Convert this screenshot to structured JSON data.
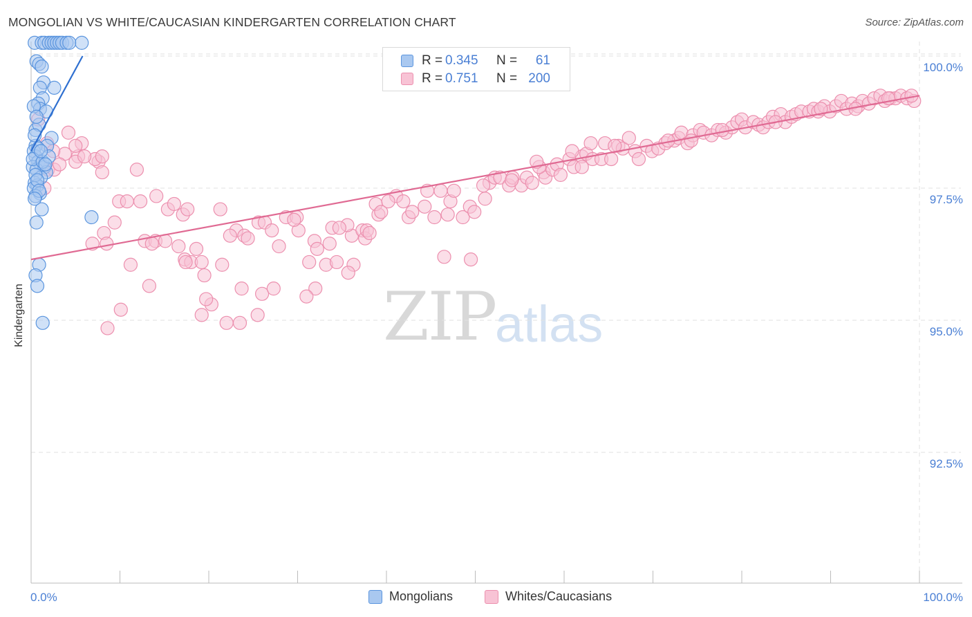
{
  "header": {
    "title": "MONGOLIAN VS WHITE/CAUCASIAN KINDERGARTEN CORRELATION CHART",
    "source": "Source: ZipAtlas.com"
  },
  "watermark": {
    "zip": "ZIP",
    "atlas": "atlas"
  },
  "legend": {
    "rows": [
      {
        "r_label": "R =",
        "r_value": "0.345",
        "n_label": "N =",
        "n_value": "61",
        "color": "#4a7fd4"
      },
      {
        "r_label": "R =",
        "r_value": "0.751",
        "n_label": "N =",
        "n_value": "200",
        "color": "#4a7fd4"
      }
    ]
  },
  "bottom_legend": {
    "mongolians": "Mongolians",
    "whites": "Whites/Caucasians"
  },
  "colors": {
    "blue_fill": "#a9c8f0",
    "blue_stroke": "#5b95de",
    "blue_line": "#2e6fd0",
    "pink_fill": "#f8c3d5",
    "pink_stroke": "#ec8fae",
    "pink_line": "#e06a93",
    "tick_text": "#4a7fd4",
    "grid": "#e2e2e2"
  },
  "chart_data": {
    "type": "scatter",
    "title": "MONGOLIAN VS WHITE/CAUCASIAN KINDERGARTEN CORRELATION CHART",
    "xlabel": "",
    "ylabel": "Kindergarten",
    "xlim": [
      0,
      100
    ],
    "ylim": [
      90.35,
      100.2
    ],
    "x_tick_labels": [
      "0.0%",
      "100.0%"
    ],
    "y_ticks": [
      {
        "value": 100.0,
        "label": "100.0%"
      },
      {
        "value": 97.5,
        "label": "97.5%"
      },
      {
        "value": 95.0,
        "label": "95.0%"
      },
      {
        "value": 92.5,
        "label": "92.5%"
      }
    ],
    "series": [
      {
        "name": "Mongolians",
        "trend": {
          "x1": 0.0,
          "y1": 98.2,
          "x2": 5.8,
          "y2": 100.0
        },
        "points": [
          [
            0.4,
            100.25
          ],
          [
            1.2,
            100.25
          ],
          [
            1.5,
            100.25
          ],
          [
            2.0,
            100.25
          ],
          [
            2.3,
            100.25
          ],
          [
            2.6,
            100.25
          ],
          [
            2.9,
            100.25
          ],
          [
            3.2,
            100.25
          ],
          [
            3.5,
            100.25
          ],
          [
            4.0,
            100.25
          ],
          [
            4.3,
            100.25
          ],
          [
            5.7,
            100.25
          ],
          [
            0.6,
            99.9
          ],
          [
            0.9,
            99.85
          ],
          [
            1.2,
            99.8
          ],
          [
            1.4,
            99.5
          ],
          [
            1.0,
            99.4
          ],
          [
            1.3,
            99.2
          ],
          [
            2.6,
            99.4
          ],
          [
            0.8,
            99.1
          ],
          [
            1.0,
            99.0
          ],
          [
            1.7,
            98.95
          ],
          [
            0.5,
            98.6
          ],
          [
            0.9,
            98.7
          ],
          [
            2.3,
            98.45
          ],
          [
            1.8,
            98.3
          ],
          [
            0.5,
            98.3
          ],
          [
            0.3,
            98.2
          ],
          [
            0.5,
            98.1
          ],
          [
            0.8,
            98.0
          ],
          [
            1.1,
            97.95
          ],
          [
            0.2,
            97.9
          ],
          [
            1.5,
            97.9
          ],
          [
            0.6,
            97.85
          ],
          [
            1.7,
            97.8
          ],
          [
            1.1,
            97.7
          ],
          [
            0.4,
            97.6
          ],
          [
            0.7,
            97.55
          ],
          [
            0.3,
            97.5
          ],
          [
            1.0,
            97.4
          ],
          [
            0.5,
            97.35
          ],
          [
            1.2,
            97.1
          ],
          [
            6.8,
            96.95
          ],
          [
            0.6,
            96.85
          ],
          [
            0.9,
            96.05
          ],
          [
            0.5,
            95.85
          ],
          [
            0.7,
            95.65
          ],
          [
            1.3,
            94.95
          ],
          [
            0.3,
            99.05
          ],
          [
            0.6,
            98.85
          ],
          [
            0.4,
            98.5
          ],
          [
            0.8,
            98.25
          ],
          [
            0.2,
            98.05
          ],
          [
            0.5,
            97.75
          ],
          [
            1.3,
            98.0
          ],
          [
            0.7,
            97.65
          ],
          [
            0.9,
            97.45
          ],
          [
            2.0,
            98.1
          ],
          [
            1.6,
            97.95
          ],
          [
            1.1,
            98.2
          ],
          [
            0.4,
            97.3
          ]
        ]
      },
      {
        "name": "Whites/Caucasians",
        "trend": {
          "x1": 0.0,
          "y1": 96.15,
          "x2": 100.0,
          "y2": 99.25
        },
        "points": [
          [
            0.8,
            98.8
          ],
          [
            1.8,
            98.35
          ],
          [
            4.2,
            98.55
          ],
          [
            5.7,
            98.35
          ],
          [
            3.8,
            98.15
          ],
          [
            1.9,
            97.85
          ],
          [
            2.6,
            97.85
          ],
          [
            3.2,
            97.95
          ],
          [
            2.5,
            98.2
          ],
          [
            5.3,
            98.1
          ],
          [
            5.0,
            98.0
          ],
          [
            7.6,
            98.0
          ],
          [
            7.2,
            98.05
          ],
          [
            8.0,
            98.1
          ],
          [
            8.0,
            97.8
          ],
          [
            11.9,
            97.85
          ],
          [
            1.5,
            97.5
          ],
          [
            9.9,
            97.25
          ],
          [
            10.8,
            97.25
          ],
          [
            12.3,
            97.25
          ],
          [
            14.1,
            97.35
          ],
          [
            15.4,
            97.1
          ],
          [
            16.1,
            97.2
          ],
          [
            17.1,
            97.0
          ],
          [
            17.6,
            97.1
          ],
          [
            21.3,
            97.1
          ],
          [
            23.1,
            96.7
          ],
          [
            25.6,
            96.85
          ],
          [
            26.3,
            96.85
          ],
          [
            28.7,
            96.95
          ],
          [
            29.9,
            96.95
          ],
          [
            30.1,
            96.7
          ],
          [
            31.9,
            96.5
          ],
          [
            33.9,
            96.75
          ],
          [
            9.4,
            96.85
          ],
          [
            8.2,
            96.65
          ],
          [
            12.8,
            96.5
          ],
          [
            14.0,
            96.5
          ],
          [
            15.1,
            96.5
          ],
          [
            17.3,
            96.15
          ],
          [
            18.0,
            96.1
          ],
          [
            18.6,
            96.35
          ],
          [
            19.2,
            96.1
          ],
          [
            24.0,
            96.6
          ],
          [
            27.9,
            96.4
          ],
          [
            31.3,
            96.1
          ],
          [
            32.2,
            96.35
          ],
          [
            33.2,
            96.05
          ],
          [
            34.4,
            96.1
          ],
          [
            36.1,
            96.6
          ],
          [
            37.3,
            96.7
          ],
          [
            37.6,
            96.55
          ],
          [
            37.8,
            96.7
          ],
          [
            38.1,
            96.65
          ],
          [
            36.3,
            96.05
          ],
          [
            35.7,
            95.9
          ],
          [
            6.9,
            96.45
          ],
          [
            8.5,
            96.45
          ],
          [
            11.2,
            96.05
          ],
          [
            17.4,
            96.1
          ],
          [
            19.5,
            95.85
          ],
          [
            21.5,
            96.05
          ],
          [
            23.7,
            95.6
          ],
          [
            26.0,
            95.5
          ],
          [
            27.3,
            95.6
          ],
          [
            32.0,
            95.6
          ],
          [
            31.0,
            95.45
          ],
          [
            20.3,
            95.3
          ],
          [
            10.1,
            95.2
          ],
          [
            19.7,
            95.4
          ],
          [
            25.5,
            95.1
          ],
          [
            23.5,
            94.95
          ],
          [
            8.6,
            94.85
          ],
          [
            22.0,
            94.95
          ],
          [
            19.2,
            95.1
          ],
          [
            13.3,
            95.65
          ],
          [
            39.1,
            97.0
          ],
          [
            38.8,
            97.2
          ],
          [
            39.4,
            97.05
          ],
          [
            41.1,
            97.35
          ],
          [
            41.9,
            97.25
          ],
          [
            42.5,
            96.95
          ],
          [
            42.9,
            97.05
          ],
          [
            44.3,
            97.15
          ],
          [
            45.4,
            96.95
          ],
          [
            46.1,
            97.45
          ],
          [
            46.9,
            97.0
          ],
          [
            47.2,
            97.25
          ],
          [
            47.6,
            97.45
          ],
          [
            48.6,
            96.95
          ],
          [
            49.4,
            97.15
          ],
          [
            49.9,
            97.05
          ],
          [
            51.1,
            97.3
          ],
          [
            51.6,
            97.6
          ],
          [
            50.9,
            97.55
          ],
          [
            52.2,
            97.7
          ],
          [
            52.8,
            97.7
          ],
          [
            53.8,
            97.55
          ],
          [
            54.2,
            97.7
          ],
          [
            55.2,
            97.55
          ],
          [
            55.8,
            97.7
          ],
          [
            56.4,
            97.6
          ],
          [
            57.7,
            97.8
          ],
          [
            57.9,
            97.7
          ],
          [
            57.2,
            97.9
          ],
          [
            58.7,
            97.85
          ],
          [
            59.2,
            97.95
          ],
          [
            59.6,
            97.75
          ],
          [
            60.6,
            98.05
          ],
          [
            61.1,
            97.9
          ],
          [
            62.0,
            98.1
          ],
          [
            62.5,
            98.15
          ],
          [
            63.0,
            98.35
          ],
          [
            63.2,
            98.05
          ],
          [
            64.2,
            98.05
          ],
          [
            64.6,
            98.35
          ],
          [
            65.3,
            98.05
          ],
          [
            66.1,
            98.3
          ],
          [
            66.6,
            98.25
          ],
          [
            67.3,
            98.45
          ],
          [
            68.0,
            98.2
          ],
          [
            68.4,
            98.05
          ],
          [
            69.3,
            98.3
          ],
          [
            69.9,
            98.2
          ],
          [
            70.6,
            98.25
          ],
          [
            71.4,
            98.35
          ],
          [
            72.4,
            98.4
          ],
          [
            72.9,
            98.45
          ],
          [
            73.2,
            98.55
          ],
          [
            73.9,
            98.35
          ],
          [
            74.5,
            98.5
          ],
          [
            75.3,
            98.6
          ],
          [
            75.7,
            98.55
          ],
          [
            76.6,
            98.5
          ],
          [
            77.3,
            98.6
          ],
          [
            78.2,
            98.55
          ],
          [
            78.9,
            98.65
          ],
          [
            79.5,
            98.75
          ],
          [
            80.0,
            98.8
          ],
          [
            80.4,
            98.65
          ],
          [
            81.3,
            98.75
          ],
          [
            81.9,
            98.7
          ],
          [
            82.4,
            98.65
          ],
          [
            83.0,
            98.75
          ],
          [
            83.5,
            98.85
          ],
          [
            84.4,
            98.9
          ],
          [
            84.9,
            98.75
          ],
          [
            85.6,
            98.85
          ],
          [
            86.1,
            98.9
          ],
          [
            86.7,
            98.95
          ],
          [
            87.6,
            98.95
          ],
          [
            88.1,
            99.0
          ],
          [
            88.6,
            98.95
          ],
          [
            89.3,
            99.05
          ],
          [
            89.9,
            98.95
          ],
          [
            90.6,
            99.05
          ],
          [
            91.2,
            99.15
          ],
          [
            91.8,
            99.0
          ],
          [
            92.4,
            99.1
          ],
          [
            93.1,
            99.05
          ],
          [
            93.6,
            99.15
          ],
          [
            94.3,
            99.1
          ],
          [
            94.9,
            99.2
          ],
          [
            95.6,
            99.25
          ],
          [
            96.1,
            99.15
          ],
          [
            96.7,
            99.2
          ],
          [
            97.3,
            99.2
          ],
          [
            97.9,
            99.25
          ],
          [
            98.6,
            99.2
          ],
          [
            99.4,
            99.15
          ],
          [
            74.3,
            98.4
          ],
          [
            62.0,
            97.9
          ],
          [
            54.1,
            97.65
          ],
          [
            40.2,
            97.25
          ],
          [
            44.6,
            97.45
          ],
          [
            35.6,
            96.8
          ],
          [
            29.6,
            96.9
          ],
          [
            56.9,
            98.0
          ],
          [
            60.9,
            98.2
          ],
          [
            65.7,
            98.3
          ],
          [
            71.7,
            98.4
          ],
          [
            77.8,
            98.6
          ],
          [
            83.8,
            98.75
          ],
          [
            88.9,
            99.0
          ],
          [
            92.8,
            99.0
          ],
          [
            96.5,
            99.2
          ],
          [
            99.1,
            99.25
          ],
          [
            27.1,
            96.7
          ],
          [
            22.4,
            96.6
          ],
          [
            13.6,
            96.45
          ],
          [
            16.6,
            96.4
          ],
          [
            24.4,
            96.55
          ],
          [
            33.6,
            96.45
          ],
          [
            34.7,
            96.75
          ],
          [
            46.5,
            96.2
          ],
          [
            49.5,
            96.15
          ],
          [
            6.0,
            98.1
          ],
          [
            5.0,
            98.3
          ]
        ]
      }
    ]
  }
}
